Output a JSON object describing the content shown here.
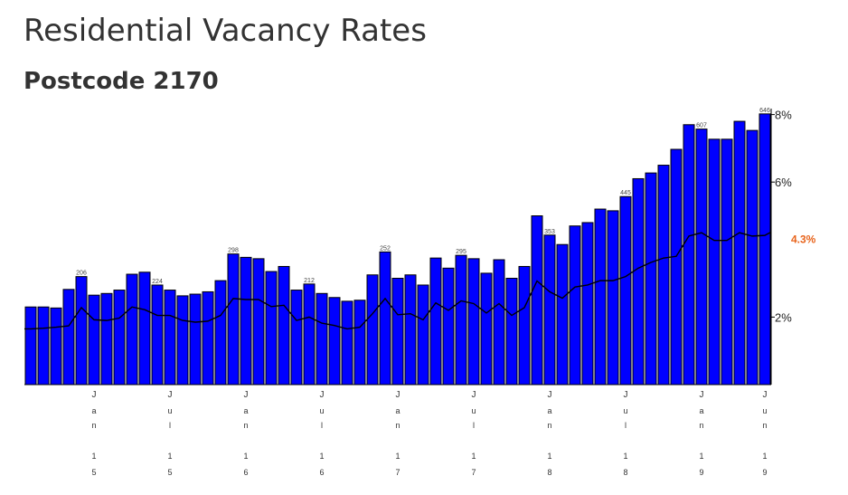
{
  "title": "Residential Vacancy Rates",
  "subtitle": "Postcode 2170",
  "colors": {
    "bar": "#0000ff",
    "bar_stroke": "#000000",
    "line": "#000000",
    "highlight": "#e8641c",
    "axis": "#000000",
    "text": "#333333"
  },
  "chart_data": {
    "type": "bar",
    "title": "Residential Vacancy Rates",
    "subtitle": "Postcode 2170",
    "xlabel": "",
    "ylabel": "",
    "grid": false,
    "legend": "none",
    "y_axis_position": "right",
    "ylim": [
      0,
      8.1
    ],
    "y_ticks": [
      "2%",
      "6%",
      "8%"
    ],
    "y_tick_values": [
      2,
      6,
      8
    ],
    "x_ticks": [
      {
        "index": 5,
        "label": [
          "J",
          "a",
          "n",
          "",
          "1",
          "5"
        ]
      },
      {
        "index": 11,
        "label": [
          "J",
          "u",
          "l",
          "",
          "1",
          "5"
        ]
      },
      {
        "index": 17,
        "label": [
          "J",
          "a",
          "n",
          "",
          "1",
          "6"
        ]
      },
      {
        "index": 23,
        "label": [
          "J",
          "u",
          "l",
          "",
          "1",
          "6"
        ]
      },
      {
        "index": 29,
        "label": [
          "J",
          "a",
          "n",
          "",
          "1",
          "7"
        ]
      },
      {
        "index": 35,
        "label": [
          "J",
          "u",
          "l",
          "",
          "1",
          "7"
        ]
      },
      {
        "index": 41,
        "label": [
          "J",
          "a",
          "n",
          "",
          "1",
          "8"
        ]
      },
      {
        "index": 47,
        "label": [
          "J",
          "u",
          "l",
          "",
          "1",
          "8"
        ]
      },
      {
        "index": 53,
        "label": [
          "J",
          "a",
          "n",
          "",
          "1",
          "9"
        ]
      },
      {
        "index": 58,
        "label": [
          "J",
          "u",
          "n",
          "",
          "1",
          "9"
        ]
      }
    ],
    "series": [
      {
        "type": "bar",
        "values": [
          2.3,
          2.3,
          2.27,
          2.82,
          3.2,
          2.65,
          2.7,
          2.8,
          3.27,
          3.33,
          2.95,
          2.8,
          2.63,
          2.68,
          2.75,
          3.08,
          3.87,
          3.77,
          3.73,
          3.35,
          3.5,
          2.8,
          2.98,
          2.7,
          2.58,
          2.47,
          2.5,
          3.25,
          3.93,
          3.15,
          3.25,
          2.95,
          3.75,
          3.45,
          3.83,
          3.73,
          3.3,
          3.7,
          3.15,
          3.5,
          5.0,
          4.43,
          4.15,
          4.7,
          4.8,
          5.2,
          5.15,
          5.57,
          6.1,
          6.27,
          6.5,
          6.97,
          7.7,
          7.57,
          7.27,
          7.27,
          7.8,
          7.53,
          8.02
        ]
      },
      {
        "type": "line",
        "values": [
          1.65,
          1.67,
          1.7,
          1.74,
          2.28,
          1.92,
          1.9,
          1.97,
          2.3,
          2.22,
          2.05,
          2.05,
          1.9,
          1.85,
          1.88,
          2.05,
          2.55,
          2.52,
          2.52,
          2.31,
          2.35,
          1.9,
          2.0,
          1.82,
          1.75,
          1.65,
          1.7,
          2.1,
          2.55,
          2.07,
          2.1,
          1.92,
          2.42,
          2.2,
          2.48,
          2.4,
          2.12,
          2.4,
          2.05,
          2.28,
          3.07,
          2.75,
          2.56,
          2.89,
          2.95,
          3.08,
          3.08,
          3.2,
          3.45,
          3.62,
          3.75,
          3.8,
          4.4,
          4.5,
          4.27,
          4.27,
          4.5,
          4.4,
          4.42
        ]
      }
    ],
    "bar_value_labels": [
      {
        "index": 4,
        "label": "206"
      },
      {
        "index": 10,
        "label": "224"
      },
      {
        "index": 16,
        "label": "298"
      },
      {
        "index": 22,
        "label": "212"
      },
      {
        "index": 28,
        "label": "252"
      },
      {
        "index": 34,
        "label": "295"
      },
      {
        "index": 41,
        "label": "353"
      },
      {
        "index": 47,
        "label": "445"
      },
      {
        "index": 53,
        "label": "607"
      },
      {
        "index": 58,
        "label": "646"
      }
    ],
    "annotations": [
      {
        "text": "4.3%",
        "y": 4.3,
        "color": "#e8641c"
      }
    ]
  }
}
